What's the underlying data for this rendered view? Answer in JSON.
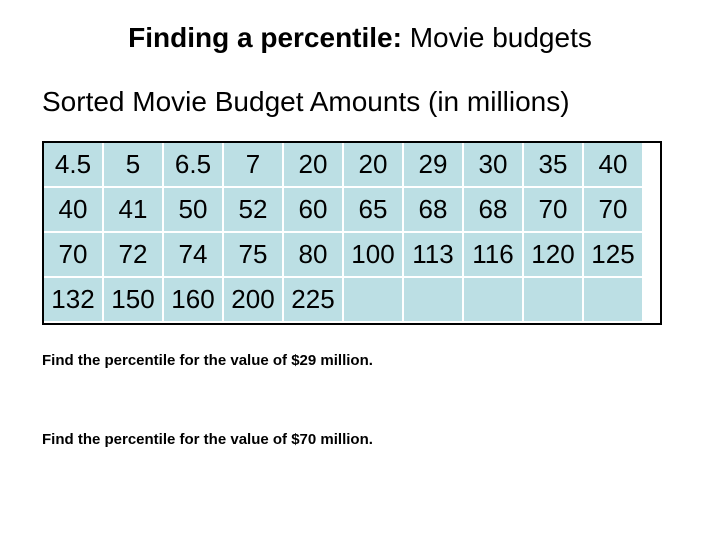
{
  "title": {
    "bold_part": "Finding a percentile:",
    "normal_part": " Movie budgets"
  },
  "subtitle": "Sorted Movie Budget Amounts (in millions)",
  "table": {
    "rows": [
      [
        "4.5",
        "5",
        "6.5",
        "7",
        "20",
        "20",
        "29",
        "30",
        "35",
        "40"
      ],
      [
        "40",
        "41",
        "50",
        "52",
        "60",
        "65",
        "68",
        "68",
        "70",
        "70"
      ],
      [
        "70",
        "72",
        "74",
        "75",
        "80",
        "100",
        "113",
        "116",
        "120",
        "125"
      ],
      [
        "132",
        "150",
        "160",
        "200",
        "225",
        "",
        "",
        "",
        "",
        ""
      ]
    ]
  },
  "questions": [
    "Find the percentile for the value of $29 million.",
    "Find the percentile for the value of $70 million."
  ]
}
